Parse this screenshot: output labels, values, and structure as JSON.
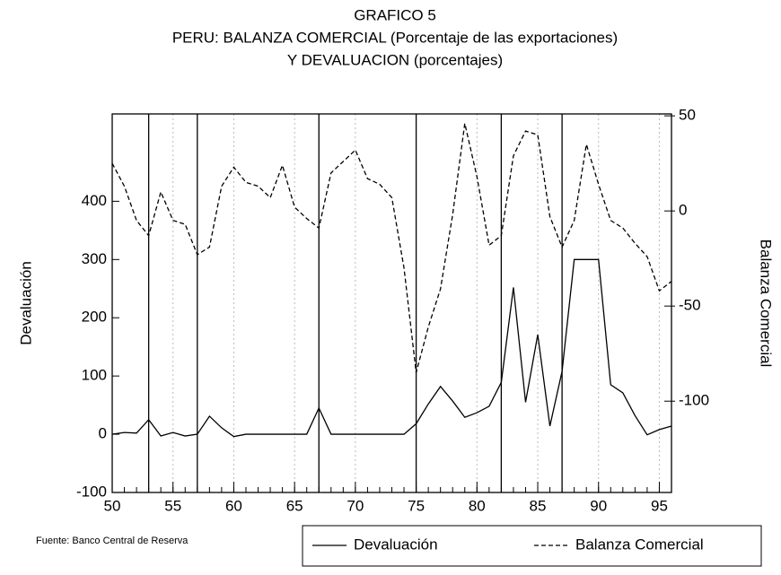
{
  "chart_data": {
    "type": "line",
    "title": "GRAFICO 5",
    "subtitle": [
      "PERU: BALANZA COMERCIAL (Porcentaje de las exportaciones)",
      "Y DEVALUACION (porcentajes)"
    ],
    "y_label": "Devaluación",
    "y2_label": "Balanza Comercial",
    "source": "Fuente: Banco Central de Reserva",
    "x": [
      50,
      51,
      52,
      53,
      54,
      55,
      56,
      57,
      58,
      59,
      60,
      61,
      62,
      63,
      64,
      65,
      66,
      67,
      68,
      69,
      70,
      71,
      72,
      73,
      74,
      75,
      76,
      77,
      78,
      79,
      80,
      81,
      82,
      83,
      84,
      85,
      86,
      87,
      88,
      89,
      90,
      91,
      92,
      93,
      94,
      95,
      96
    ],
    "xlim": [
      50,
      96
    ],
    "xticks": [
      50,
      55,
      60,
      65,
      70,
      75,
      80,
      85,
      90,
      95
    ],
    "ylim": [
      -100,
      550
    ],
    "yticks": [
      -100,
      0,
      100,
      200,
      300,
      400
    ],
    "y2lim": [
      -148,
      51
    ],
    "y2ticks": [
      -100,
      -50,
      0,
      50
    ],
    "event_lines": [
      53,
      57,
      67,
      75,
      82,
      87
    ],
    "grid": true,
    "legend": "bottom-right",
    "series": [
      {
        "name": "Devaluación",
        "color": "#000000",
        "dash": false,
        "values": [
          0,
          3,
          2,
          25,
          -3,
          3,
          -3,
          0,
          31,
          11,
          -4,
          0,
          0,
          0,
          0,
          0,
          0,
          45,
          0,
          0,
          0,
          0,
          0,
          0,
          0,
          18,
          52,
          82,
          57,
          29,
          37,
          48,
          89,
          252,
          55,
          171,
          14,
          108,
          300,
          300,
          300,
          85,
          71,
          32,
          -1,
          8,
          14
        ]
      },
      {
        "name": "Balanza Comercial",
        "color": "#000000",
        "dash": true,
        "axis": "y2",
        "values": [
          25,
          13,
          -5,
          -13,
          10,
          -5,
          -7,
          -23,
          -19,
          13,
          23,
          15,
          13,
          7,
          24,
          2,
          -4,
          -9,
          20,
          26,
          32,
          17,
          14,
          7,
          -30,
          -85,
          -61,
          -41,
          -2,
          46,
          18,
          -18,
          -13,
          29,
          42,
          40,
          -3,
          -19,
          -5,
          35,
          14,
          -5,
          -9,
          -17,
          -24,
          -42,
          -37
        ]
      }
    ]
  }
}
